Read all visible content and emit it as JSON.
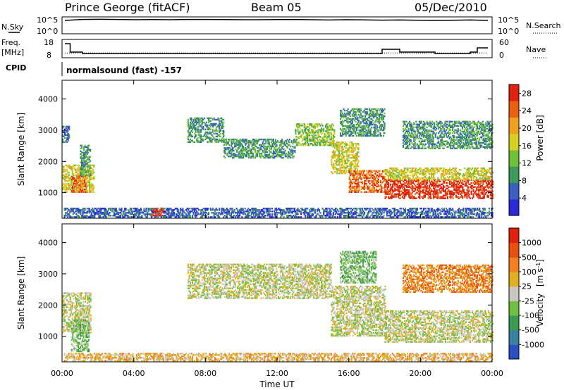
{
  "header": {
    "title": "Prince George (fitACF)",
    "beam": "Beam 05",
    "date": "05/Dec/2010"
  },
  "aux_panels": {
    "nsky_label": "N.Sky",
    "nsky_ticks": [
      "10^5",
      "10^0"
    ],
    "nsearch_label": "N.Search",
    "nsearch_ticks": [
      "10^5",
      "10^0"
    ],
    "freq_label": "Freq.",
    "freq_unit": "[MHz]",
    "freq_ticks": [
      "18",
      "8"
    ],
    "nave_label": "Nave",
    "nave_ticks": [
      "60",
      "0"
    ],
    "cpid_label": "CPID",
    "cpid_value": "normalsound (fast) -157"
  },
  "colors": {
    "power_scale": [
      "#2a2ad8",
      "#3a5fc0",
      "#3e9a58",
      "#6fbf3a",
      "#d8d020",
      "#f0a020",
      "#e86010",
      "#e02010"
    ],
    "velocity_scale": [
      "#2a4fc0",
      "#3a80a0",
      "#3a9a50",
      "#6fc040",
      "#c8c8c0",
      "#e0b020",
      "#f08020",
      "#e85010",
      "#e02010"
    ]
  },
  "chart_data": [
    {
      "type": "heatmap",
      "title": "",
      "xlabel": "",
      "ylabel": "Slant Range [km]",
      "x_ticks": [
        "00:00",
        "04:00",
        "08:00",
        "12:00",
        "16:00",
        "20:00",
        "00:00"
      ],
      "y_ticks": [
        "1000",
        "2000",
        "3000",
        "4000"
      ],
      "xlim_hours": [
        0,
        24
      ],
      "ylim_km": [
        180,
        4600
      ],
      "colorbar": {
        "label": "Power [dB]",
        "ticks": [
          "4",
          "8",
          "12",
          "16",
          "20",
          "24",
          "28"
        ],
        "range": [
          0,
          30
        ]
      },
      "regions": [
        {
          "t0": 0.0,
          "t1": 0.4,
          "r0": 2600,
          "r1": 3100,
          "level": 1
        },
        {
          "t0": 0.0,
          "t1": 1.8,
          "r0": 1000,
          "r1": 1900,
          "level": 4
        },
        {
          "t0": 0.5,
          "t1": 1.3,
          "r0": 1000,
          "r1": 1500,
          "level": 6
        },
        {
          "t0": 1.0,
          "t1": 1.6,
          "r0": 1500,
          "r1": 2500,
          "level": 2
        },
        {
          "t0": 0.1,
          "t1": 24.0,
          "r0": 200,
          "r1": 500,
          "level": 1
        },
        {
          "t0": 5.0,
          "t1": 5.6,
          "r0": 250,
          "r1": 500,
          "level": 7
        },
        {
          "t0": 7.0,
          "t1": 9.0,
          "r0": 2600,
          "r1": 3400,
          "level": 2
        },
        {
          "t0": 9.0,
          "t1": 13.0,
          "r0": 2100,
          "r1": 2700,
          "level": 2
        },
        {
          "t0": 13.0,
          "t1": 15.2,
          "r0": 2500,
          "r1": 3200,
          "level": 3
        },
        {
          "t0": 15.0,
          "t1": 16.5,
          "r0": 1600,
          "r1": 2600,
          "level": 4
        },
        {
          "t0": 16.0,
          "t1": 18.0,
          "r0": 1000,
          "r1": 1700,
          "level": 6
        },
        {
          "t0": 15.5,
          "t1": 18.0,
          "r0": 2800,
          "r1": 3700,
          "level": 2
        },
        {
          "t0": 18.0,
          "t1": 24.0,
          "r0": 800,
          "r1": 1400,
          "level": 7
        },
        {
          "t0": 18.0,
          "t1": 24.0,
          "r0": 1400,
          "r1": 1800,
          "level": 4
        },
        {
          "t0": 19.0,
          "t1": 24.0,
          "r0": 2400,
          "r1": 3300,
          "level": 2
        }
      ]
    },
    {
      "type": "heatmap",
      "title": "",
      "xlabel": "Time UT",
      "ylabel": "Slant Range [km]",
      "x_ticks": [
        "00:00",
        "04:00",
        "08:00",
        "12:00",
        "16:00",
        "20:00",
        "00:00"
      ],
      "y_ticks": [
        "1000",
        "2000",
        "3000",
        "4000"
      ],
      "xlim_hours": [
        0,
        24
      ],
      "ylim_km": [
        180,
        4600
      ],
      "colorbar": {
        "label": "Velocity",
        "unit": "[m s",
        "unit_exp": "-1",
        "unit_close": "]",
        "ticks": [
          "1000",
          "500",
          "100",
          "25",
          "-25",
          "-100",
          "-500",
          "-1000"
        ],
        "range": [
          -1200,
          1200
        ]
      },
      "regions": [
        {
          "t0": 0.0,
          "t1": 1.6,
          "r0": 1100,
          "r1": 2400,
          "level": 4
        },
        {
          "t0": 0.5,
          "t1": 1.5,
          "r0": 500,
          "r1": 1500,
          "level": 3
        },
        {
          "t0": 0.1,
          "t1": 24.0,
          "r0": 200,
          "r1": 450,
          "level": 5
        },
        {
          "t0": 5.0,
          "t1": 5.6,
          "r0": 250,
          "r1": 450,
          "level": 5
        },
        {
          "t0": 7.0,
          "t1": 15.0,
          "r0": 2200,
          "r1": 3300,
          "level": 4
        },
        {
          "t0": 15.0,
          "t1": 18.0,
          "r0": 1000,
          "r1": 2600,
          "level": 4
        },
        {
          "t0": 15.5,
          "t1": 17.5,
          "r0": 2700,
          "r1": 3700,
          "level": 3
        },
        {
          "t0": 18.0,
          "t1": 24.0,
          "r0": 800,
          "r1": 1800,
          "level": 4
        },
        {
          "t0": 19.0,
          "t1": 24.0,
          "r0": 2400,
          "r1": 3300,
          "level": 6
        }
      ]
    }
  ],
  "aux_series": {
    "nsky_level": [
      0.85,
      0.92,
      0.93,
      0.92,
      0.9,
      0.91,
      0.9,
      0.92,
      0.92,
      0.91,
      0.9,
      0.9,
      0.91,
      0.92,
      0.9,
      0.88,
      0.9,
      0.89,
      0.87,
      0.88,
      0.86,
      0.85,
      0.86,
      0.88,
      0.85
    ],
    "freq_hours": [
      0,
      0.3,
      1.0,
      15.0,
      17.9,
      18.0,
      18.8,
      19.0,
      21.0,
      22.5,
      23.0,
      23.4,
      24.0
    ],
    "freq_mhz": [
      17,
      11,
      10,
      10,
      10,
      13,
      13,
      11,
      10,
      10,
      11,
      14,
      14
    ],
    "nave_level": 13
  }
}
